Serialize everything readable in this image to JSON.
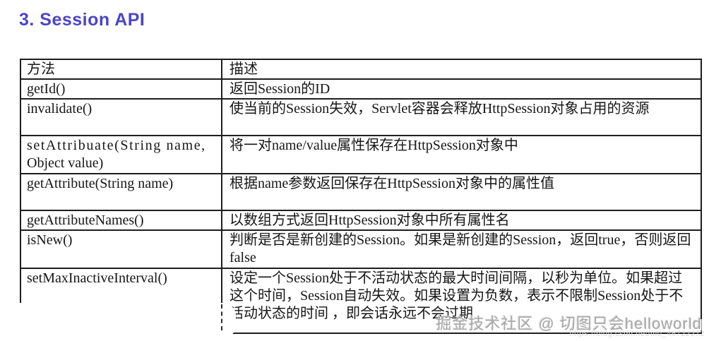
{
  "page": {
    "title": "3. Session API",
    "title_color": "#4b45c6"
  },
  "table": {
    "headers": {
      "method": "方法",
      "desc": "描述"
    },
    "rows": [
      {
        "method": "getId()",
        "desc": "返回Session的ID"
      },
      {
        "method": "invalidate()",
        "desc": "使当前的Session失效，Servlet容器会释放HttpSession对象占用的资源"
      },
      {
        "method": "setAttribuate(String name,",
        "method2": "Object value)",
        "desc": "将一对name/value属性保存在HttpSession对象中"
      },
      {
        "method": "getAttribute(String name)",
        "desc": "根据name参数返回保存在HttpSession对象中的属性值"
      },
      {
        "method": "getAttributeNames()",
        "desc": "以数组方式返回HttpSession对象中所有属性名"
      },
      {
        "method": "isNew()",
        "desc": "判断是否是新创建的Session。如果是新创建的Session，返回true，否则返回false"
      },
      {
        "method": "setMaxInactiveInterval()",
        "desc": "设定一个Session处于不活动状态的最大时间间隔，以秒为单位。如果超过这个时间，Session自动失效。如果设置为负数，表示不限制Session处于不活动状态的时间 ，即会话永远不会过期"
      }
    ]
  },
  "watermark": {
    "text": "掘金技术社区 @ 切图只会helloworld",
    "url": "https://blog.csdn.net/m0_46722272"
  }
}
